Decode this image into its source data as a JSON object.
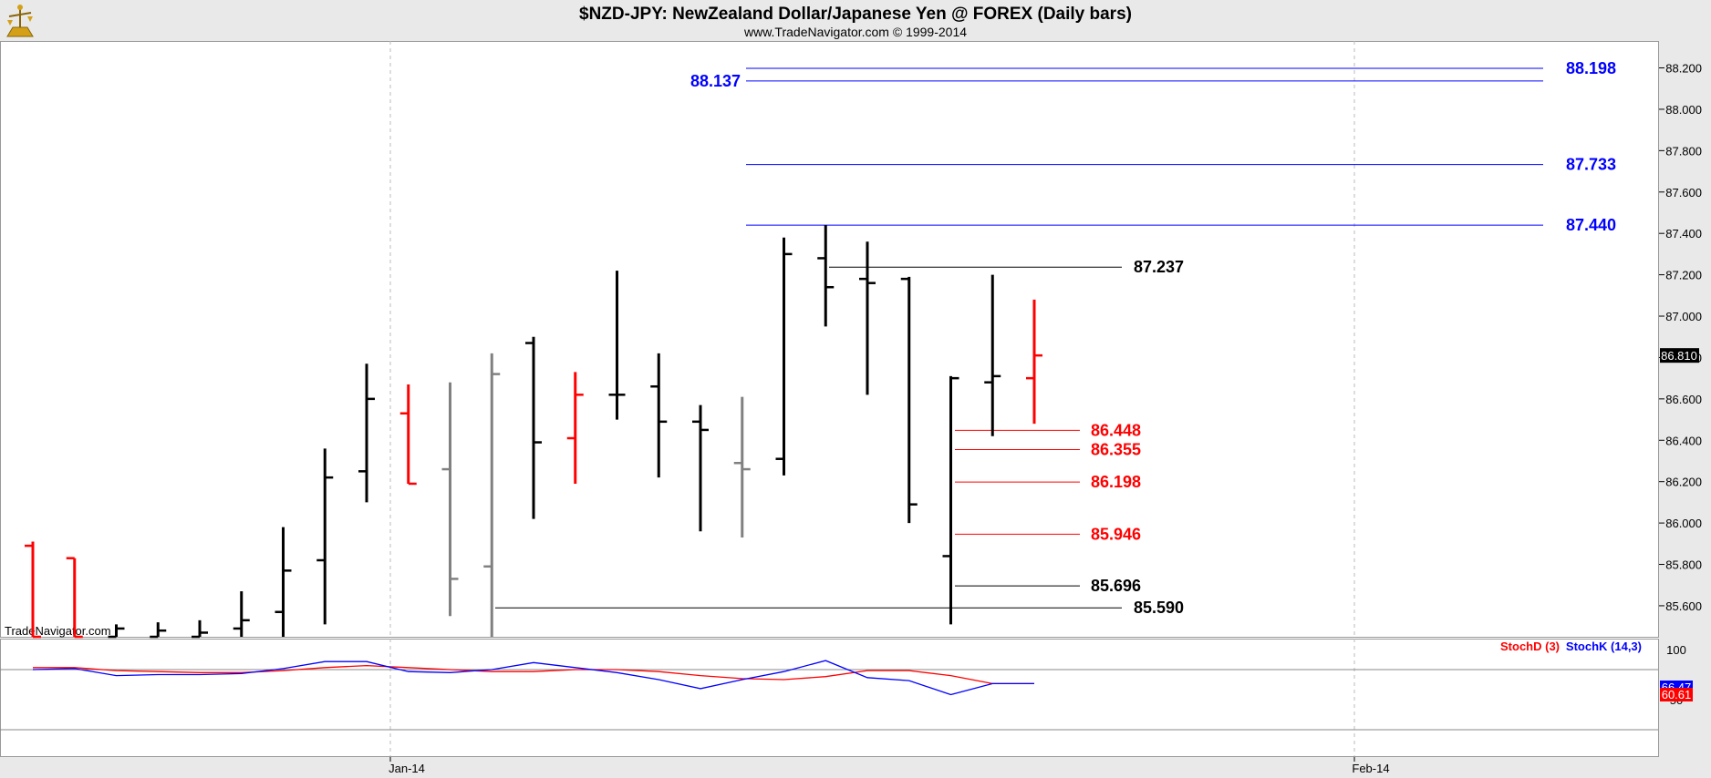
{
  "header": {
    "title": "$NZD-JPY:  NewZealand Dollar/Japanese Yen @ FOREX  (Daily bars)",
    "subtitle": "www.TradeNavigator.com © 1999-2014"
  },
  "watermark": "TradeNavigator.com",
  "logo_icon": "trade-navigator-logo-icon",
  "colors": {
    "up_bar": "#000000",
    "down_bar": "#ff0000",
    "gray_bar": "#808080",
    "blue_level": "#0000ff",
    "red_level": "#ff0000",
    "black_level": "#000000",
    "stoch_d": "#ff0000",
    "stoch_k": "#0000ff",
    "grid": "#bbbbbb"
  },
  "chart_data": [
    {
      "type": "ohlc",
      "title": "$NZD-JPY:  NewZealand Dollar/Japanese Yen @ FOREX  (Daily bars)",
      "ylim": [
        85.45,
        88.33
      ],
      "y_ticks": [
        "88.200",
        "88.000",
        "87.800",
        "87.600",
        "87.400",
        "87.200",
        "87.000",
        "86.800",
        "86.600",
        "86.400",
        "86.200",
        "86.000",
        "85.800",
        "85.600"
      ],
      "x_ticks": [
        "Jan-14",
        "Feb-14"
      ],
      "last_price": "86.810",
      "bars": [
        {
          "bar": 0,
          "open": 85.89,
          "high": 85.91,
          "low": 85.45,
          "close": 85.45,
          "color": "red"
        },
        {
          "bar": 1,
          "open": 85.83,
          "high": 85.83,
          "low": 85.45,
          "close": 85.45,
          "color": "red"
        },
        {
          "bar": 2,
          "open": 85.45,
          "high": 85.51,
          "low": 85.45,
          "close": 85.49,
          "color": "black"
        },
        {
          "bar": 3,
          "open": 85.45,
          "high": 85.52,
          "low": 85.45,
          "close": 85.48,
          "color": "black"
        },
        {
          "bar": 4,
          "open": 85.45,
          "high": 85.53,
          "low": 85.45,
          "close": 85.47,
          "color": "black"
        },
        {
          "bar": 5,
          "open": 85.49,
          "high": 85.67,
          "low": 85.45,
          "close": 85.53,
          "color": "black"
        },
        {
          "bar": 6,
          "open": 85.57,
          "high": 85.98,
          "low": 85.45,
          "close": 85.77,
          "color": "black"
        },
        {
          "bar": 7,
          "open": 85.82,
          "high": 86.36,
          "low": 85.51,
          "close": 86.22,
          "color": "black"
        },
        {
          "bar": 8,
          "open": 86.25,
          "high": 86.77,
          "low": 86.1,
          "close": 86.6,
          "color": "black"
        },
        {
          "bar": 9,
          "open": 86.53,
          "high": 86.67,
          "low": 86.19,
          "close": 86.19,
          "color": "red"
        },
        {
          "bar": 10,
          "open": 86.26,
          "high": 86.68,
          "low": 85.55,
          "close": 85.73,
          "color": "gray"
        },
        {
          "bar": 11,
          "open": 85.79,
          "high": 86.82,
          "low": 85.45,
          "close": 86.72,
          "color": "gray"
        },
        {
          "bar": 12,
          "open": 86.87,
          "high": 86.9,
          "low": 86.02,
          "close": 86.39,
          "color": "black"
        },
        {
          "bar": 13,
          "open": 86.41,
          "high": 86.73,
          "low": 86.19,
          "close": 86.62,
          "color": "red"
        },
        {
          "bar": 14,
          "open": 86.62,
          "high": 87.22,
          "low": 86.5,
          "close": 86.62,
          "color": "black"
        },
        {
          "bar": 15,
          "open": 86.66,
          "high": 86.82,
          "low": 86.22,
          "close": 86.49,
          "color": "black"
        },
        {
          "bar": 16,
          "open": 86.49,
          "high": 86.57,
          "low": 85.96,
          "close": 86.45,
          "color": "black"
        },
        {
          "bar": 17,
          "open": 86.29,
          "high": 86.61,
          "low": 85.93,
          "close": 86.26,
          "color": "gray"
        },
        {
          "bar": 18,
          "open": 86.31,
          "high": 87.38,
          "low": 86.23,
          "close": 87.3,
          "color": "black"
        },
        {
          "bar": 19,
          "open": 87.28,
          "high": 87.44,
          "low": 86.95,
          "close": 87.14,
          "color": "black"
        },
        {
          "bar": 20,
          "open": 87.18,
          "high": 87.36,
          "low": 86.62,
          "close": 87.16,
          "color": "black"
        },
        {
          "bar": 21,
          "open": 87.18,
          "high": 87.19,
          "low": 86.0,
          "close": 86.09,
          "color": "black"
        },
        {
          "bar": 22,
          "open": 85.84,
          "high": 86.71,
          "low": 85.51,
          "close": 86.7,
          "color": "black"
        },
        {
          "bar": 23,
          "open": 86.68,
          "high": 87.2,
          "low": 86.42,
          "close": 86.71,
          "color": "black"
        },
        {
          "bar": 24,
          "open": 86.7,
          "high": 87.08,
          "low": 86.48,
          "close": 86.81,
          "color": "red"
        }
      ],
      "levels": [
        {
          "value": "88.198",
          "color": "blue",
          "label_side": "right"
        },
        {
          "value": "88.137",
          "color": "blue",
          "label_side": "left"
        },
        {
          "value": "87.733",
          "color": "blue",
          "label_side": "right"
        },
        {
          "value": "87.440",
          "color": "blue",
          "label_side": "right"
        },
        {
          "value": "87.237",
          "color": "black",
          "label_side": "right"
        },
        {
          "value": "86.448",
          "color": "red",
          "label_side": "right"
        },
        {
          "value": "86.355",
          "color": "red",
          "label_side": "right"
        },
        {
          "value": "86.198",
          "color": "red",
          "label_side": "right"
        },
        {
          "value": "85.946",
          "color": "red",
          "label_side": "right"
        },
        {
          "value": "85.696",
          "color": "black",
          "label_side": "right"
        },
        {
          "value": "85.590",
          "color": "black",
          "label_side": "right"
        }
      ]
    },
    {
      "type": "line",
      "ylim": [
        0,
        100
      ],
      "y_ticks": [
        "100",
        "50"
      ],
      "reference_lines": [
        80,
        20
      ],
      "last_values": [
        "66.47",
        "60.61"
      ],
      "series": [
        {
          "name": "StochD (3)",
          "color": "red",
          "values": [
            82,
            82,
            79,
            78,
            77,
            77,
            79,
            82,
            84,
            82,
            80,
            78,
            78,
            80,
            80,
            78,
            74,
            71,
            70,
            73,
            79,
            79,
            74,
            66,
            66
          ]
        },
        {
          "name": "StochK (14,3)",
          "color": "blue",
          "values": [
            80,
            81,
            74,
            75,
            75,
            76,
            81,
            88,
            88,
            78,
            77,
            80,
            87,
            82,
            77,
            70,
            61,
            70,
            78,
            89,
            72,
            69,
            55,
            66,
            66
          ]
        }
      ]
    }
  ]
}
